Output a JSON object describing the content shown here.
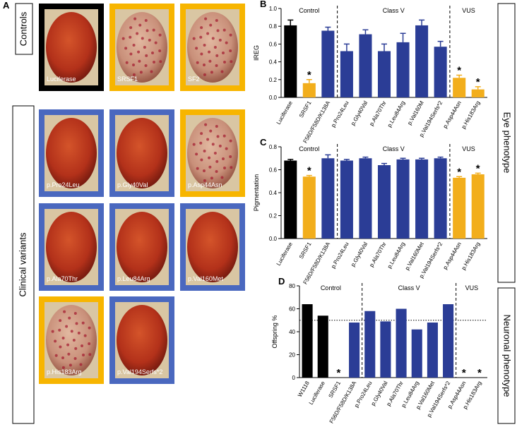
{
  "panel_a": {
    "letter": "A",
    "side_labels": [
      "Controls",
      "Clinical variants"
    ],
    "rows": [
      [
        {
          "label": "Luciferase",
          "border": "#000000",
          "mottled": false
        },
        {
          "label": "SRSF1",
          "border": "#f7b500",
          "mottled": true
        },
        {
          "label": "SF2",
          "border": "#f7b500",
          "mottled": true
        }
      ],
      [
        {
          "label": "p.Pro24Leu",
          "border": "#4a68bf",
          "mottled": false
        },
        {
          "label": "p.Gly40Val",
          "border": "#4a68bf",
          "mottled": false
        },
        {
          "label": "p.Asp44Asn",
          "border": "#f7b500",
          "mottled": true
        }
      ],
      [
        {
          "label": "p.Ala70Thr",
          "border": "#4a68bf",
          "mottled": false
        },
        {
          "label": "p.Leu84Arg",
          "border": "#4a68bf",
          "mottled": false
        },
        {
          "label": "p.Val160Met",
          "border": "#4a68bf",
          "mottled": false
        }
      ],
      [
        {
          "label": "p.His183Arg",
          "border": "#f7b500",
          "mottled": true
        },
        {
          "label": "p.Val194Serfs*2",
          "border": "#4a68bf",
          "mottled": false
        }
      ]
    ]
  },
  "phenotype_labels": [
    "Eye phenotype",
    "Neuronal phenotype"
  ],
  "chart_data": [
    {
      "type": "bar",
      "panel": "B",
      "y_label": "IREG",
      "categories": [
        "Luciferase",
        "SRSF1",
        "F56D/F58D/K138A",
        "p.Pro24Leu",
        "p.Gly40Val",
        "p.Ala70Thr",
        "p.Leu84Arg",
        "p.Val160M",
        "p.Val194Serfs*2",
        "p.Asp44Asn",
        "p.His183Arg"
      ],
      "values": [
        0.81,
        0.16,
        0.75,
        0.52,
        0.71,
        0.52,
        0.62,
        0.81,
        0.57,
        0.22,
        0.09
      ],
      "errors": [
        0.06,
        0.04,
        0.04,
        0.08,
        0.05,
        0.08,
        0.1,
        0.06,
        0.06,
        0.03,
        0.03
      ],
      "colors": [
        "#000000",
        "#f2ae1c",
        "#2b3d96",
        "#2b3d96",
        "#2b3d96",
        "#2b3d96",
        "#2b3d96",
        "#2b3d96",
        "#2b3d96",
        "#f2ae1c",
        "#f2ae1c"
      ],
      "significance": [
        null,
        "*",
        null,
        null,
        null,
        null,
        null,
        null,
        null,
        "*",
        "*"
      ],
      "groups": [
        {
          "name": "Control",
          "count": 3
        },
        {
          "name": "Class V",
          "count": 6
        },
        {
          "name": "VUS",
          "count": 2
        }
      ],
      "ylim": [
        0,
        1.0
      ],
      "yticks": [
        {
          "value": 0,
          "label": "0.0"
        },
        0.2,
        0.4,
        0.6,
        0.8,
        {
          "value": 1.0,
          "label": "1.0"
        }
      ]
    },
    {
      "type": "bar",
      "panel": "C",
      "y_label": "Pigmentation",
      "categories": [
        "Luciferase",
        "SRSF1",
        "F56D/F58D/K138A",
        "p.Pro24Leu",
        "p.Gly40Val",
        "p.Ala70Thr",
        "p.Leu84Arg",
        "p.Val160Met",
        "p.Val194Serfs*2",
        "p.Asp44Asn",
        "p.His183Arg"
      ],
      "values": [
        0.68,
        0.54,
        0.7,
        0.68,
        0.7,
        0.64,
        0.69,
        0.69,
        0.7,
        0.53,
        0.56
      ],
      "errors": [
        0.01,
        0.01,
        0.03,
        0.01,
        0.01,
        0.015,
        0.01,
        0.01,
        0.01,
        0.01,
        0.01
      ],
      "colors": [
        "#000000",
        "#f2ae1c",
        "#2b3d96",
        "#2b3d96",
        "#2b3d96",
        "#2b3d96",
        "#2b3d96",
        "#2b3d96",
        "#2b3d96",
        "#f2ae1c",
        "#f2ae1c"
      ],
      "significance": [
        null,
        "*",
        null,
        null,
        null,
        null,
        null,
        null,
        null,
        "*",
        "*"
      ],
      "groups": [
        {
          "name": "Control",
          "count": 3
        },
        {
          "name": "Class V",
          "count": 6
        },
        {
          "name": "VUS",
          "count": 2
        }
      ],
      "ylim": [
        0,
        0.8
      ],
      "yticks": [
        {
          "value": 0,
          "label": "0.0"
        },
        0.2,
        0.4,
        0.6,
        0.8
      ]
    },
    {
      "type": "bar",
      "panel": "D",
      "y_label": "Offspring %",
      "categories": [
        "W1118",
        "Luciferase",
        "SRSF1",
        "F56D/F58D/K138A",
        "p.Pro24Leu",
        "p.Gly40Val",
        "p.Ala70Thr",
        "p.Leu84Arg",
        "p.Val160Met",
        "p.Val194Serfs*2",
        "p.Asp44Asn",
        "p.His183Arg"
      ],
      "values": [
        64,
        54,
        0,
        48,
        58,
        49,
        60,
        42,
        48,
        64,
        0,
        0
      ],
      "colors": [
        "#000000",
        "#000000",
        "#000000",
        "#2b3d96",
        "#2b3d96",
        "#2b3d96",
        "#2b3d96",
        "#2b3d96",
        "#2b3d96",
        "#2b3d96",
        "#2b3d96",
        "#2b3d96"
      ],
      "significance": [
        null,
        null,
        "*",
        null,
        null,
        null,
        null,
        null,
        null,
        null,
        "*",
        "*"
      ],
      "groups": [
        {
          "name": "Control",
          "count": 4
        },
        {
          "name": "Class V",
          "count": 6
        },
        {
          "name": "VUS",
          "count": 2
        }
      ],
      "reference_line": 50,
      "ylim": [
        0,
        80
      ],
      "yticks": [
        0,
        20,
        40,
        60,
        80
      ]
    }
  ]
}
